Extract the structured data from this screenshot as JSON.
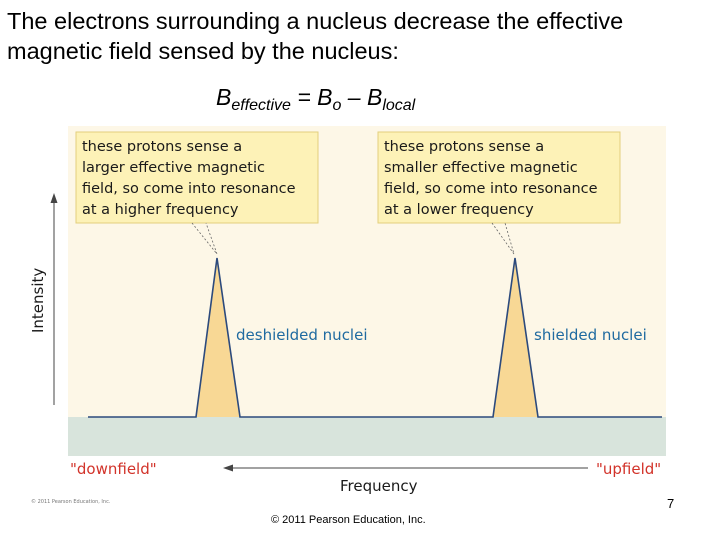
{
  "slide": {
    "title": "The electrons surrounding a nucleus decrease the effective magnetic field sensed by the nucleus:",
    "equation": {
      "lhs_symbol": "B",
      "lhs_sub": "effective",
      "op_equals": " = ",
      "b0_symbol": "B",
      "b0_sub": "o",
      "op_minus": " – ",
      "blocal_symbol": "B",
      "blocal_sub": "local"
    },
    "page_number": "7",
    "copyright": "© 2011 Pearson Education, Inc."
  },
  "figure": {
    "callout_left": [
      "these protons sense a",
      "larger effective magnetic",
      "field, so come into resonance",
      "at a higher frequency"
    ],
    "callout_right": [
      "these protons sense a",
      "smaller effective magnetic",
      "field, so come into resonance",
      "at a lower frequency"
    ],
    "peak_left_label": "deshielded nuclei",
    "peak_right_label": "shielded nuclei",
    "y_axis_label": "Intensity",
    "x_axis_label": "Frequency",
    "left_end_label": "\"downfield\"",
    "right_end_label": "\"upfield\"",
    "image_credit": "© 2011 Pearson Education, Inc.",
    "colors": {
      "panel_background": "#fdf7e7",
      "baseline_band": "#d8e4dc",
      "callout_fill": "#fdf2b7",
      "peak_fill": "#f8d895",
      "spectrum_line": "#2c4a7d",
      "nuclei_label": "#1f6aa0",
      "field_label": "#d2332a"
    }
  }
}
